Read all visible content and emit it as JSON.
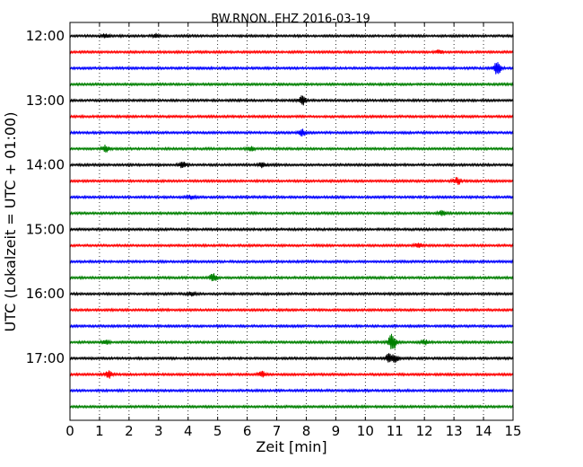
{
  "chart_data": {
    "type": "line",
    "title": "BW.RNON..EHZ 2016-03-19",
    "xlabel": "Zeit  [min]",
    "ylabel": "UTC (Lokalzeit = UTC + 01:00)",
    "xlim": [
      0,
      15
    ],
    "x_ticks": [
      "0",
      "1",
      "2",
      "3",
      "4",
      "5",
      "6",
      "7",
      "8",
      "9",
      "10",
      "11",
      "12",
      "13",
      "14",
      "15"
    ],
    "y_ticks": [
      "12:00",
      "13:00",
      "14:00",
      "15:00",
      "16:00",
      "17:00"
    ],
    "grid": true,
    "series": [
      {
        "row_start": "12:00",
        "color": "#000000",
        "events": [
          {
            "minute": 1.2,
            "amp": 2
          },
          {
            "minute": 2.9,
            "amp": 2
          }
        ]
      },
      {
        "row_start": "12:15",
        "color": "#ff0000",
        "events": [
          {
            "minute": 12.5,
            "amp": 1.5
          }
        ]
      },
      {
        "row_start": "12:30",
        "color": "#0000ff",
        "events": [
          {
            "minute": 14.45,
            "amp": 6
          }
        ]
      },
      {
        "row_start": "12:45",
        "color": "#008000",
        "events": []
      },
      {
        "row_start": "13:00",
        "color": "#000000",
        "events": [
          {
            "minute": 7.85,
            "amp": 4
          }
        ]
      },
      {
        "row_start": "13:15",
        "color": "#ff0000",
        "events": []
      },
      {
        "row_start": "13:30",
        "color": "#0000ff",
        "events": [
          {
            "minute": 7.85,
            "amp": 3
          }
        ]
      },
      {
        "row_start": "13:45",
        "color": "#008000",
        "events": [
          {
            "minute": 1.2,
            "amp": 3
          },
          {
            "minute": 6.1,
            "amp": 2
          }
        ]
      },
      {
        "row_start": "14:00",
        "color": "#000000",
        "events": [
          {
            "minute": 3.8,
            "amp": 3
          },
          {
            "minute": 6.5,
            "amp": 2.5
          }
        ]
      },
      {
        "row_start": "14:15",
        "color": "#ff0000",
        "events": [
          {
            "minute": 13.1,
            "amp": 3
          }
        ]
      },
      {
        "row_start": "14:30",
        "color": "#0000ff",
        "events": [
          {
            "minute": 4.1,
            "amp": 1.5
          }
        ]
      },
      {
        "row_start": "14:45",
        "color": "#008000",
        "events": [
          {
            "minute": 12.6,
            "amp": 2.5
          }
        ]
      },
      {
        "row_start": "15:00",
        "color": "#000000",
        "events": []
      },
      {
        "row_start": "15:15",
        "color": "#ff0000",
        "events": [
          {
            "minute": 11.8,
            "amp": 2
          }
        ]
      },
      {
        "row_start": "15:30",
        "color": "#0000ff",
        "events": []
      },
      {
        "row_start": "15:45",
        "color": "#008000",
        "events": [
          {
            "minute": 4.85,
            "amp": 4
          }
        ]
      },
      {
        "row_start": "16:00",
        "color": "#000000",
        "events": [
          {
            "minute": 4.1,
            "amp": 1.5
          }
        ]
      },
      {
        "row_start": "16:15",
        "color": "#ff0000",
        "events": []
      },
      {
        "row_start": "16:30",
        "color": "#0000ff",
        "events": []
      },
      {
        "row_start": "16:45",
        "color": "#008000",
        "events": [
          {
            "minute": 1.2,
            "amp": 2
          },
          {
            "minute": 10.9,
            "amp": 8
          },
          {
            "minute": 12.0,
            "amp": 2
          }
        ]
      },
      {
        "row_start": "17:00",
        "color": "#000000",
        "events": [
          {
            "minute": 10.8,
            "amp": 4
          },
          {
            "minute": 11.0,
            "amp": 3
          }
        ]
      },
      {
        "row_start": "17:15",
        "color": "#ff0000",
        "events": [
          {
            "minute": 1.3,
            "amp": 3
          },
          {
            "minute": 6.5,
            "amp": 3
          }
        ]
      },
      {
        "row_start": "17:30",
        "color": "#0000ff",
        "events": []
      },
      {
        "row_start": "17:45",
        "color": "#008000",
        "events": []
      }
    ]
  }
}
